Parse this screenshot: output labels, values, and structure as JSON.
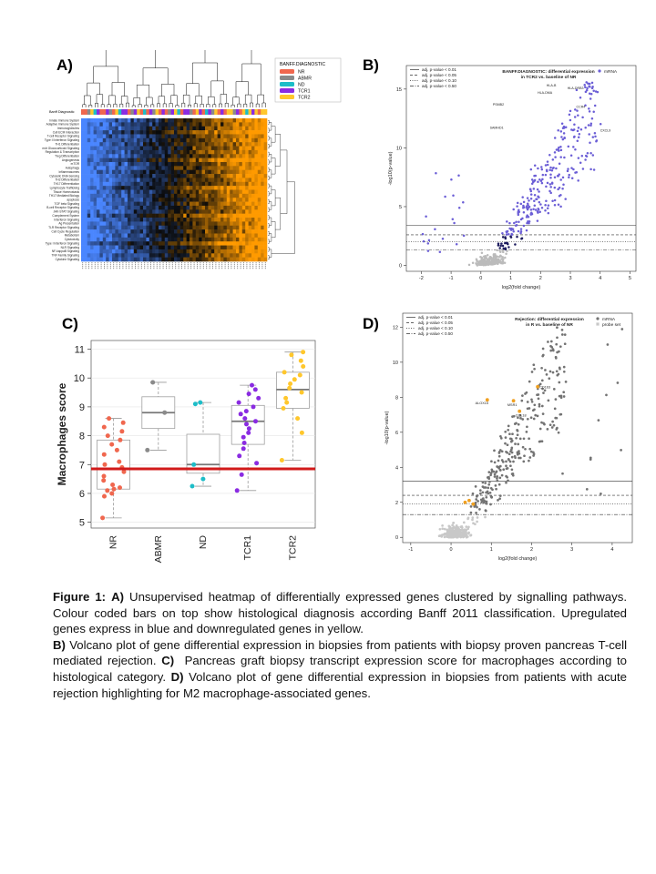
{
  "panels": {
    "a": "A)",
    "b": "B)",
    "c": "C)",
    "d": "D)"
  },
  "heatmap": {
    "legend_title": "BANFF.DIAGNOSTIC",
    "legend": [
      {
        "label": "NR",
        "color": "#f0674e"
      },
      {
        "label": "ABMR",
        "color": "#8a8a8a"
      },
      {
        "label": "ND",
        "color": "#1dbdc8"
      },
      {
        "label": "TCR1",
        "color": "#8a2be2"
      },
      {
        "label": "TCR2",
        "color": "#ffc72c"
      }
    ],
    "bar_label": "Banff Diagnostic",
    "row_labels": [
      "Innate Immune System",
      "Adaptive Immune System",
      "Immunoglobulins",
      "Cell ECM Interaction",
      "T-cell Receptor Signaling",
      "Type II Interferon Signaling",
      "TH1 Differentiation",
      "mdr Glucocorticoid Signaling",
      "Regulation & Transcription",
      "Treg Differentiation",
      "Angiogenesis",
      "mTOR",
      "Autophagy",
      "Inflammasomes",
      "Cytosolic DNA Sensing",
      "TH2 Differentiation",
      "TH17 Differentiation",
      "Lymphocyte Trafficking",
      "Tissue Homeostasis",
      "TH17 Mediated Biology",
      "apoptosis",
      "TGF beta Signaling",
      "B-cell Receptor Signaling",
      "JAK-STAT Signaling",
      "Complement System",
      "Interferon Signaling",
      "Ag Presentation",
      "TLR Receptor Signaling",
      "Cell Cycle Regulation",
      "Metabolism",
      "Cytotoxicity",
      "Type I Interferon Signaling",
      "NLR Signaling",
      "NF-kappaB Signaling",
      "TNF Family Signaling",
      "Cytokine Signaling"
    ],
    "colors": {
      "low": "#4a86ff",
      "mid": "#0a0a0a",
      "high": "#ff9a00"
    }
  },
  "volcano_b": {
    "title_line1": "BANFF.DIAGNOSTIC: differential expression",
    "title_line2": "in TCR2 vs. baseline of NR",
    "legend": [
      "adj. p-value < 0.01",
      "adj. p-value < 0.05",
      "adj. p-value < 0.10",
      "adj. p-value < 0.50"
    ],
    "series_label": "mRNA",
    "xlabel": "log2(fold change)",
    "ylabel": "-log10(p-value)",
    "xticks": [
      "-2",
      "-1",
      "0",
      "1",
      "2",
      "3",
      "4",
      "5"
    ],
    "yticks": [
      "0",
      "5",
      "10",
      "15"
    ],
    "xlim": [
      -2.5,
      5.2
    ],
    "ylim": [
      -0.5,
      17
    ],
    "thresholds": [
      3.4,
      2.6,
      2.0,
      1.3
    ],
    "gene_labels": [
      "HLA-B",
      "HLA-DRB3",
      "PSMB2",
      "HLA-DMA",
      "CCR4",
      "CXCL9",
      "SAMHD1"
    ],
    "point_color": "#6b5ed6",
    "dark_color": "#1c1a5e",
    "grey_color": "#bbbbbb"
  },
  "boxplot_c": {
    "ylabel": "Macrophages score",
    "categories": [
      "NR",
      "ABMR",
      "ND",
      "TCR1",
      "TCR2"
    ],
    "colors": [
      "#f0674e",
      "#8a8a8a",
      "#1dbdc8",
      "#8a2be2",
      "#ffc72c"
    ],
    "yticks": [
      "5",
      "6",
      "7",
      "8",
      "9",
      "10",
      "11"
    ],
    "ylim": [
      4.8,
      11.3
    ],
    "reference_line": 6.85,
    "reference_color": "#d11a1a",
    "boxes": [
      {
        "min": 5.15,
        "q1": 6.15,
        "median": 6.85,
        "q3": 7.85,
        "max": 8.6
      },
      {
        "min": 7.5,
        "q1": 8.25,
        "median": 8.8,
        "q3": 9.35,
        "max": 9.85
      },
      {
        "min": 6.25,
        "q1": 6.7,
        "median": 7.0,
        "q3": 8.05,
        "max": 9.15
      },
      {
        "min": 6.1,
        "q1": 7.7,
        "median": 8.5,
        "q3": 9.05,
        "max": 9.75
      },
      {
        "min": 7.15,
        "q1": 8.95,
        "median": 9.6,
        "q3": 10.2,
        "max": 10.9
      }
    ],
    "points": [
      [
        5.15,
        5.9,
        6.0,
        6.1,
        6.15,
        6.2,
        6.3,
        6.45,
        6.6,
        6.75,
        6.9,
        7.0,
        7.1,
        7.35,
        7.5,
        7.7,
        7.85,
        8.0,
        8.15,
        8.3,
        8.45,
        8.6
      ],
      [
        7.5,
        8.8,
        9.85
      ],
      [
        6.25,
        6.5,
        7.0,
        9.1,
        9.15
      ],
      [
        6.1,
        6.65,
        7.05,
        7.3,
        7.55,
        7.75,
        7.95,
        8.1,
        8.25,
        8.4,
        8.5,
        8.6,
        8.75,
        8.85,
        9.0,
        9.15,
        9.3,
        9.45,
        9.6,
        9.75
      ],
      [
        7.15,
        8.1,
        8.6,
        8.95,
        9.15,
        9.3,
        9.5,
        9.65,
        9.8,
        9.95,
        10.1,
        10.2,
        10.4,
        10.6,
        10.8,
        10.9
      ]
    ]
  },
  "volcano_d": {
    "title_line1": "Rejection: differential expression",
    "title_line2": "in R vs. baseline of NR",
    "legend": [
      "adj. p-value < 0.01",
      "adj. p-value < 0.05",
      "adj. p-value < 0.10",
      "adj. p-value < 0.50"
    ],
    "series_labels": [
      "mRNA",
      "probe set"
    ],
    "xlabel": "log2(fold change)",
    "ylabel": "-log10(p-value)",
    "xticks": [
      "-1",
      "0",
      "1",
      "2",
      "3",
      "4"
    ],
    "yticks": [
      "0",
      "2",
      "4",
      "6",
      "8",
      "10",
      "12"
    ],
    "xlim": [
      -1.2,
      4.5
    ],
    "ylim": [
      -0.3,
      12.8
    ],
    "thresholds": [
      3.2,
      2.4,
      1.9,
      1.3
    ],
    "gene_labels": [
      "CD163",
      "ALOX15",
      "MSR1",
      "CCL18"
    ],
    "point_color": "#737373",
    "grey_color": "#c8c8c8",
    "highlight_color": "#f0a020"
  },
  "caption": {
    "figure_label": "Figure 1:",
    "a_label": "A)",
    "a_text": "Unsupervised heatmap of differentially expressed genes clustered by signalling pathways. Colour coded bars on top show histological diagnosis according Banff 2011 classification. Upregulated genes express in blue and downregulated genes in yellow.",
    "b_label": "B)",
    "b_text": "Volcano plot of gene differential expression in biopsies from patients with biopsy proven pancreas T-cell mediated rejection.",
    "c_label": "C)",
    "c_text": "Pancreas graft biopsy transcript expression score for macrophages according to histological category.",
    "d_label": "D)",
    "d_text": "Volcano plot of gene differential expression in biopsies from patients with acute rejection highlighting for M2 macrophage-associated genes."
  }
}
